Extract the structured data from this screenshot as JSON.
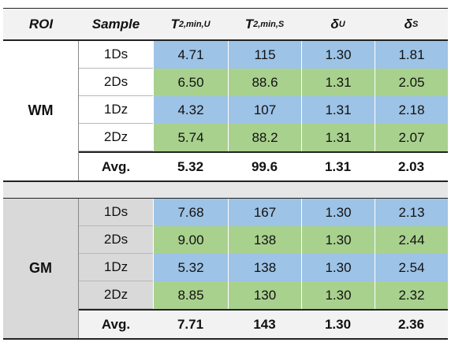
{
  "header": {
    "roi": "ROI",
    "sample": "Sample",
    "t2u_main": "T",
    "t2u_sub": "2,min,U",
    "t2s_main": "T",
    "t2s_sub": "2,min,S",
    "du_main": "δ",
    "du_sub": "U",
    "ds_main": "δ",
    "ds_sub": "S"
  },
  "wm": {
    "roi": "WM",
    "rows": [
      {
        "sample": "1Ds",
        "t2u": "4.71",
        "t2s": "115",
        "du": "1.30",
        "ds": "1.81"
      },
      {
        "sample": "2Ds",
        "t2u": "6.50",
        "t2s": "88.6",
        "du": "1.31",
        "ds": "2.05"
      },
      {
        "sample": "1Dz",
        "t2u": "4.32",
        "t2s": "107",
        "du": "1.31",
        "ds": "2.18"
      },
      {
        "sample": "2Dz",
        "t2u": "5.74",
        "t2s": "88.2",
        "du": "1.31",
        "ds": "2.07"
      }
    ],
    "avg": {
      "label": "Avg.",
      "t2u": "5.32",
      "t2s": "99.6",
      "du": "1.31",
      "ds": "2.03"
    }
  },
  "gm": {
    "roi": "GM",
    "rows": [
      {
        "sample": "1Ds",
        "t2u": "7.68",
        "t2s": "167",
        "du": "1.30",
        "ds": "2.13"
      },
      {
        "sample": "2Ds",
        "t2u": "9.00",
        "t2s": "138",
        "du": "1.30",
        "ds": "2.44"
      },
      {
        "sample": "1Dz",
        "t2u": "5.32",
        "t2s": "138",
        "du": "1.30",
        "ds": "2.54"
      },
      {
        "sample": "2Dz",
        "t2u": "8.85",
        "t2s": "130",
        "du": "1.30",
        "ds": "2.32"
      }
    ],
    "avg": {
      "label": "Avg.",
      "t2u": "7.71",
      "t2s": "143",
      "du": "1.30",
      "ds": "2.36"
    }
  },
  "colors": {
    "blue": "#9dc3e6",
    "green": "#a9d18e",
    "gm_bg": "#d9d9d9",
    "header_bg": "#f2f2f2"
  }
}
